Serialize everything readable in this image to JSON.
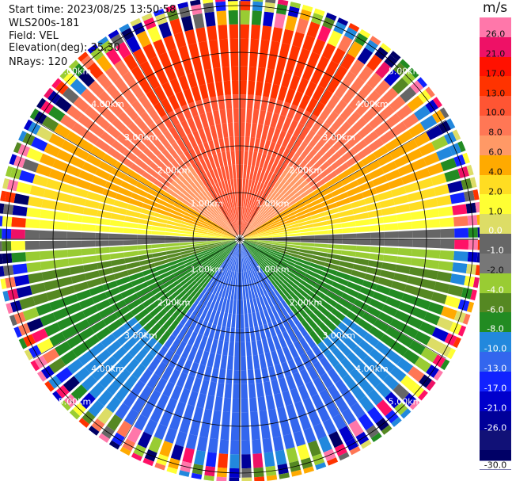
{
  "header": {
    "start_time": "Start time: 2023/08/25 13:50:58",
    "instrument": "WLS200s-181",
    "field": "Field: VEL",
    "elevation": "Elevation(deg): 35.30",
    "nrays": "NRays: 120"
  },
  "colorbar": {
    "unit": "m/s",
    "ticks": [
      "26.0",
      "21.0",
      "17.0",
      "13.0",
      "10.0",
      "8.0",
      "6.0",
      "4.0",
      "2.0",
      "1.0",
      "0.0",
      "-1.0",
      "-2.0",
      "-4.0",
      "-6.0",
      "-8.0",
      "-10.0",
      "-13.0",
      "-17.0",
      "-21.0",
      "-26.0",
      "-30.0"
    ],
    "colors": [
      "#ff77aa",
      "#ee1166",
      "#ff1100",
      "#ff3300",
      "#ff5533",
      "#ff7755",
      "#ff9966",
      "#ffaa00",
      "#ffdd22",
      "#ffff33",
      "#dddd66",
      "#666666",
      "#777777",
      "#99cc33",
      "#558822",
      "#228b22",
      "#2288dd",
      "#3366ee",
      "#1122ff",
      "#0000cc",
      "#000099",
      "#111177",
      "#000066"
    ]
  },
  "chart_data": {
    "type": "polar-ppi",
    "field": "VEL",
    "units": "m/s",
    "elevation_deg": 35.3,
    "nrays": 120,
    "range_rings_km": [
      "1.00km",
      "2.00km",
      "3.00km",
      "4.00km",
      "5.00km"
    ],
    "velocity_by_sector": [
      {
        "sector": "north",
        "approx_velocity_ms": 13.0
      },
      {
        "sector": "north-east/north-west",
        "approx_velocity_ms": 8.0
      },
      {
        "sector": "east/west near-horizontal",
        "approx_velocity_ms": 2.0
      },
      {
        "sector": "horizontal axis",
        "approx_velocity_ms": 0.0
      },
      {
        "sector": "south-east/south-west",
        "approx_velocity_ms": -6.0
      },
      {
        "sector": "south",
        "approx_velocity_ms": -10.0
      }
    ],
    "outer_noise_start_km": 4.3
  }
}
